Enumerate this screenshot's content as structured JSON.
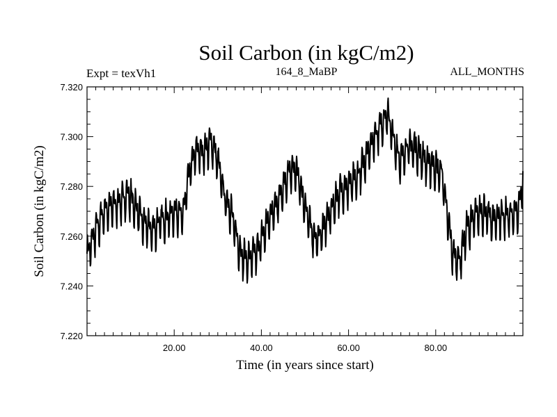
{
  "chart_data": {
    "type": "line",
    "title": "Soil Carbon (in kgC/m2)",
    "subtitle_left": "Expt = texVh1",
    "subtitle_center": "164_8_MaBP",
    "subtitle_right": "ALL_MONTHS",
    "xlabel": "Time (in years since start)",
    "ylabel": "Soil Carbon (in kgC/m2)",
    "xlim": [
      0.0,
      100.0
    ],
    "ylim": [
      7.22,
      7.32
    ],
    "x_tick_labels": [
      "20.00",
      "40.00",
      "60.00",
      "80.00"
    ],
    "x_ticks": [
      20,
      40,
      60,
      80
    ],
    "y_tick_labels": [
      "7.220",
      "7.240",
      "7.260",
      "7.280",
      "7.300",
      "7.320"
    ],
    "y_ticks": [
      7.22,
      7.24,
      7.26,
      7.28,
      7.3,
      7.32
    ],
    "series": [
      {
        "name": "Soil Carbon",
        "color": "#000000",
        "trend": [
          [
            0.0,
            7.252
          ],
          [
            2.0,
            7.262
          ],
          [
            4.0,
            7.27
          ],
          [
            6.0,
            7.272
          ],
          [
            8.0,
            7.274
          ],
          [
            9.5,
            7.277
          ],
          [
            11.0,
            7.272
          ],
          [
            13.0,
            7.265
          ],
          [
            15.0,
            7.262
          ],
          [
            17.0,
            7.266
          ],
          [
            19.0,
            7.268
          ],
          [
            20.5,
            7.27
          ],
          [
            22.0,
            7.268
          ],
          [
            23.5,
            7.286
          ],
          [
            25.0,
            7.294
          ],
          [
            27.0,
            7.294
          ],
          [
            28.5,
            7.298
          ],
          [
            30.0,
            7.29
          ],
          [
            31.5,
            7.276
          ],
          [
            33.0,
            7.27
          ],
          [
            34.5,
            7.258
          ],
          [
            35.5,
            7.252
          ],
          [
            37.0,
            7.25
          ],
          [
            39.0,
            7.254
          ],
          [
            41.0,
            7.263
          ],
          [
            43.0,
            7.272
          ],
          [
            45.0,
            7.278
          ],
          [
            46.5,
            7.286
          ],
          [
            48.0,
            7.286
          ],
          [
            49.5,
            7.276
          ],
          [
            51.0,
            7.265
          ],
          [
            52.5,
            7.258
          ],
          [
            54.0,
            7.262
          ],
          [
            56.0,
            7.27
          ],
          [
            58.0,
            7.278
          ],
          [
            60.0,
            7.28
          ],
          [
            62.0,
            7.283
          ],
          [
            64.0,
            7.292
          ],
          [
            66.0,
            7.3
          ],
          [
            68.0,
            7.306
          ],
          [
            69.0,
            7.309
          ],
          [
            70.5,
            7.297
          ],
          [
            72.0,
            7.29
          ],
          [
            73.5,
            7.296
          ],
          [
            75.5,
            7.295
          ],
          [
            77.5,
            7.29
          ],
          [
            79.5,
            7.288
          ],
          [
            81.5,
            7.285
          ],
          [
            82.5,
            7.27
          ],
          [
            84.0,
            7.252
          ],
          [
            85.5,
            7.25
          ],
          [
            87.0,
            7.262
          ],
          [
            89.0,
            7.268
          ],
          [
            91.0,
            7.27
          ],
          [
            93.0,
            7.266
          ],
          [
            95.0,
            7.268
          ],
          [
            97.0,
            7.268
          ],
          [
            99.0,
            7.27
          ],
          [
            100.0,
            7.282
          ]
        ],
        "seasonal_amplitude": 0.009
      }
    ]
  }
}
